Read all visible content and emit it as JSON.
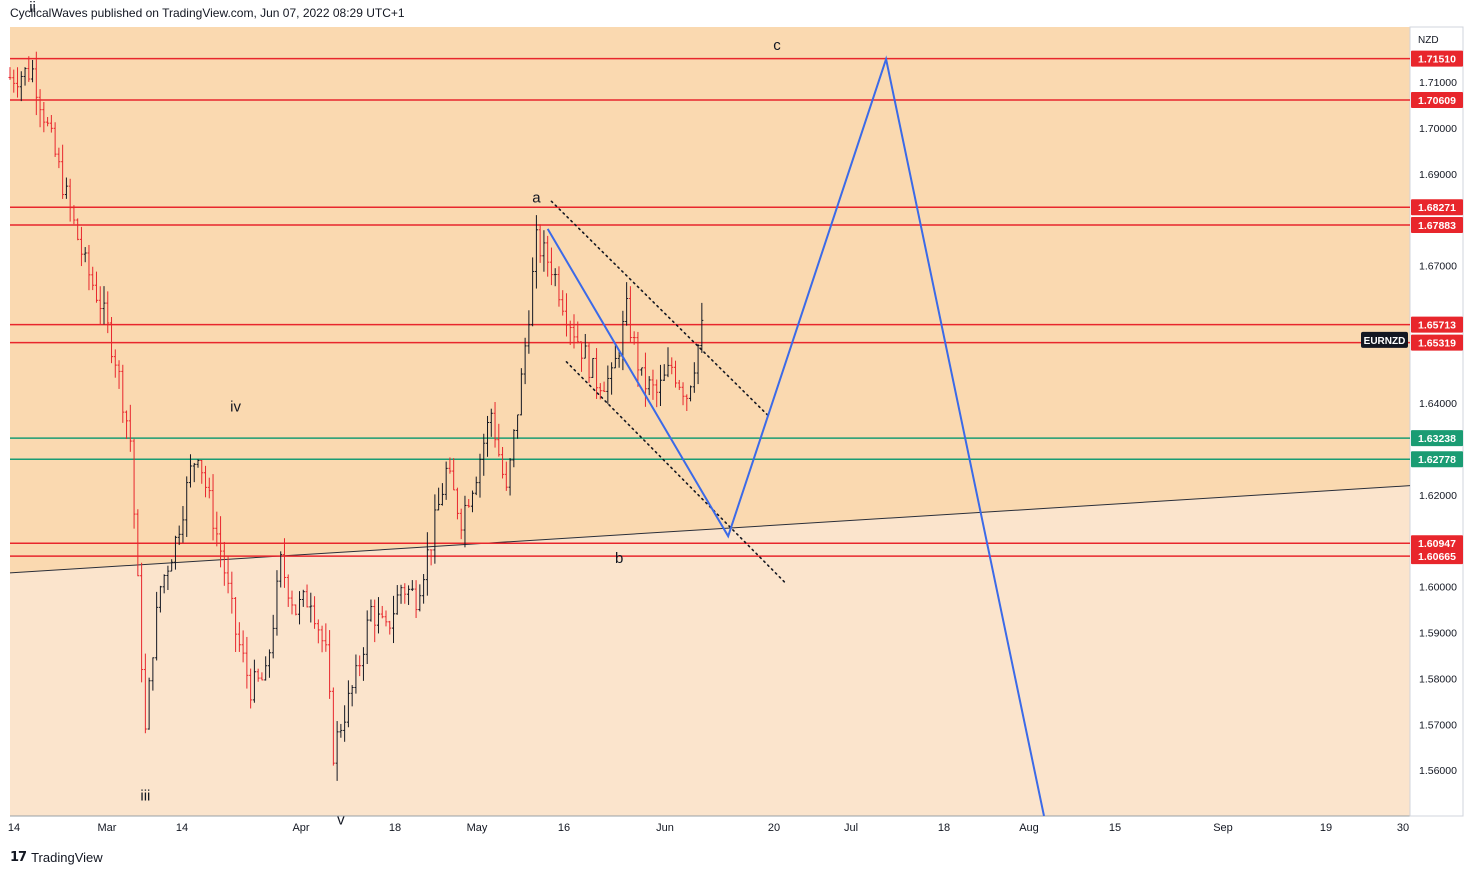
{
  "header": {
    "publish_info": "CyclicalWaves published on TradingView.com, Jun 07, 2022 08:29 UTC+1"
  },
  "footer": {
    "brand": "TradingView"
  },
  "colors": {
    "zone_upper": "#fad9b0",
    "zone_lower": "#fbe4cc",
    "red_line": "#e8262c",
    "green_line": "#1a9c73",
    "projection": "#3b6ae8",
    "candle": "#131722",
    "candle_red": "#e8262c"
  },
  "chart_data": {
    "type": "candlestick",
    "symbol": "EURNZD",
    "currency": "NZD",
    "ylim": [
      1.55,
      1.722
    ],
    "y_ticks": [
      "1.56000",
      "1.57000",
      "1.58000",
      "1.59000",
      "1.60000",
      "1.62000",
      "1.64000",
      "1.67000",
      "1.69000",
      "1.70000",
      "1.71000"
    ],
    "x_ticks": [
      "14",
      "Mar",
      "14",
      "Apr",
      "18",
      "May",
      "16",
      "Jun",
      "20",
      "Jul",
      "18",
      "Aug",
      "15",
      "Sep",
      "19",
      "30"
    ],
    "horizontal_levels": [
      {
        "value": 1.7151,
        "label": "1.71510",
        "color": "red"
      },
      {
        "value": 1.70609,
        "label": "1.70609",
        "color": "red"
      },
      {
        "value": 1.68271,
        "label": "1.68271",
        "color": "red"
      },
      {
        "value": 1.67883,
        "label": "1.67883",
        "color": "red"
      },
      {
        "value": 1.65713,
        "label": "1.65713",
        "color": "red"
      },
      {
        "value": 1.65319,
        "label": "1.65319",
        "color": "red"
      },
      {
        "value": 1.63238,
        "label": "1.63238",
        "color": "green"
      },
      {
        "value": 1.62778,
        "label": "1.62778",
        "color": "green"
      },
      {
        "value": 1.60947,
        "label": "1.60947",
        "color": "red"
      },
      {
        "value": 1.60665,
        "label": "1.60665",
        "color": "red"
      }
    ],
    "symbol_tag_value": 1.6538,
    "wave_labels": [
      {
        "text": "ii",
        "t": 3,
        "price": 1.7253
      },
      {
        "text": "iii",
        "t": 18,
        "price": 1.5534
      },
      {
        "text": "iv",
        "t": 30,
        "price": 1.6382
      },
      {
        "text": "v",
        "t": 44,
        "price": 1.5482
      },
      {
        "text": "a",
        "t": 70,
        "price": 1.6837
      },
      {
        "text": "b",
        "t": 81,
        "price": 1.6052
      },
      {
        "text": "c",
        "t": 102,
        "price": 1.717
      }
    ],
    "price_path": [
      [
        0,
        1.711
      ],
      [
        3,
        1.7125
      ],
      [
        5,
        1.7
      ],
      [
        8,
        1.682
      ],
      [
        10,
        1.67
      ],
      [
        12,
        1.662
      ],
      [
        14,
        1.65
      ],
      [
        16,
        1.632
      ],
      [
        17,
        1.6
      ],
      [
        18,
        1.568
      ],
      [
        19,
        1.587
      ],
      [
        20,
        1.6
      ],
      [
        22,
        1.61
      ],
      [
        24,
        1.625
      ],
      [
        25,
        1.63
      ],
      [
        26,
        1.622
      ],
      [
        28,
        1.608
      ],
      [
        30,
        1.59
      ],
      [
        32,
        1.578
      ],
      [
        34,
        1.58
      ],
      [
        36,
        1.605
      ],
      [
        38,
        1.595
      ],
      [
        40,
        1.598
      ],
      [
        42,
        1.585
      ],
      [
        43,
        1.564
      ],
      [
        44,
        1.57
      ],
      [
        46,
        1.58
      ],
      [
        48,
        1.595
      ],
      [
        50,
        1.59
      ],
      [
        52,
        1.6
      ],
      [
        54,
        1.598
      ],
      [
        56,
        1.61
      ],
      [
        58,
        1.625
      ],
      [
        60,
        1.615
      ],
      [
        62,
        1.625
      ],
      [
        64,
        1.638
      ],
      [
        66,
        1.62
      ],
      [
        68,
        1.645
      ],
      [
        69,
        1.66
      ],
      [
        70,
        1.675
      ],
      [
        72,
        1.67
      ],
      [
        74,
        1.66
      ],
      [
        76,
        1.652
      ],
      [
        78,
        1.645
      ],
      [
        80,
        1.645
      ],
      [
        82,
        1.66
      ],
      [
        84,
        1.645
      ],
      [
        86,
        1.642
      ],
      [
        88,
        1.648
      ],
      [
        90,
        1.642
      ],
      [
        92,
        1.656
      ]
    ],
    "projection_path": [
      {
        "t": 71.5,
        "price": 1.678
      },
      {
        "t": 95.5,
        "price": 1.611
      },
      {
        "t": 116.5,
        "price": 1.715
      },
      {
        "t": 137.5,
        "price": 1.55
      }
    ],
    "channel_upper": [
      {
        "t": 72,
        "price": 1.684
      },
      {
        "t": 101,
        "price": 1.637
      }
    ],
    "channel_lower": [
      {
        "t": 74,
        "price": 1.649
      },
      {
        "t": 103,
        "price": 1.601
      }
    ],
    "trendline": [
      {
        "t": 0,
        "price": 1.603
      },
      {
        "t": 186,
        "price": 1.622
      }
    ]
  }
}
